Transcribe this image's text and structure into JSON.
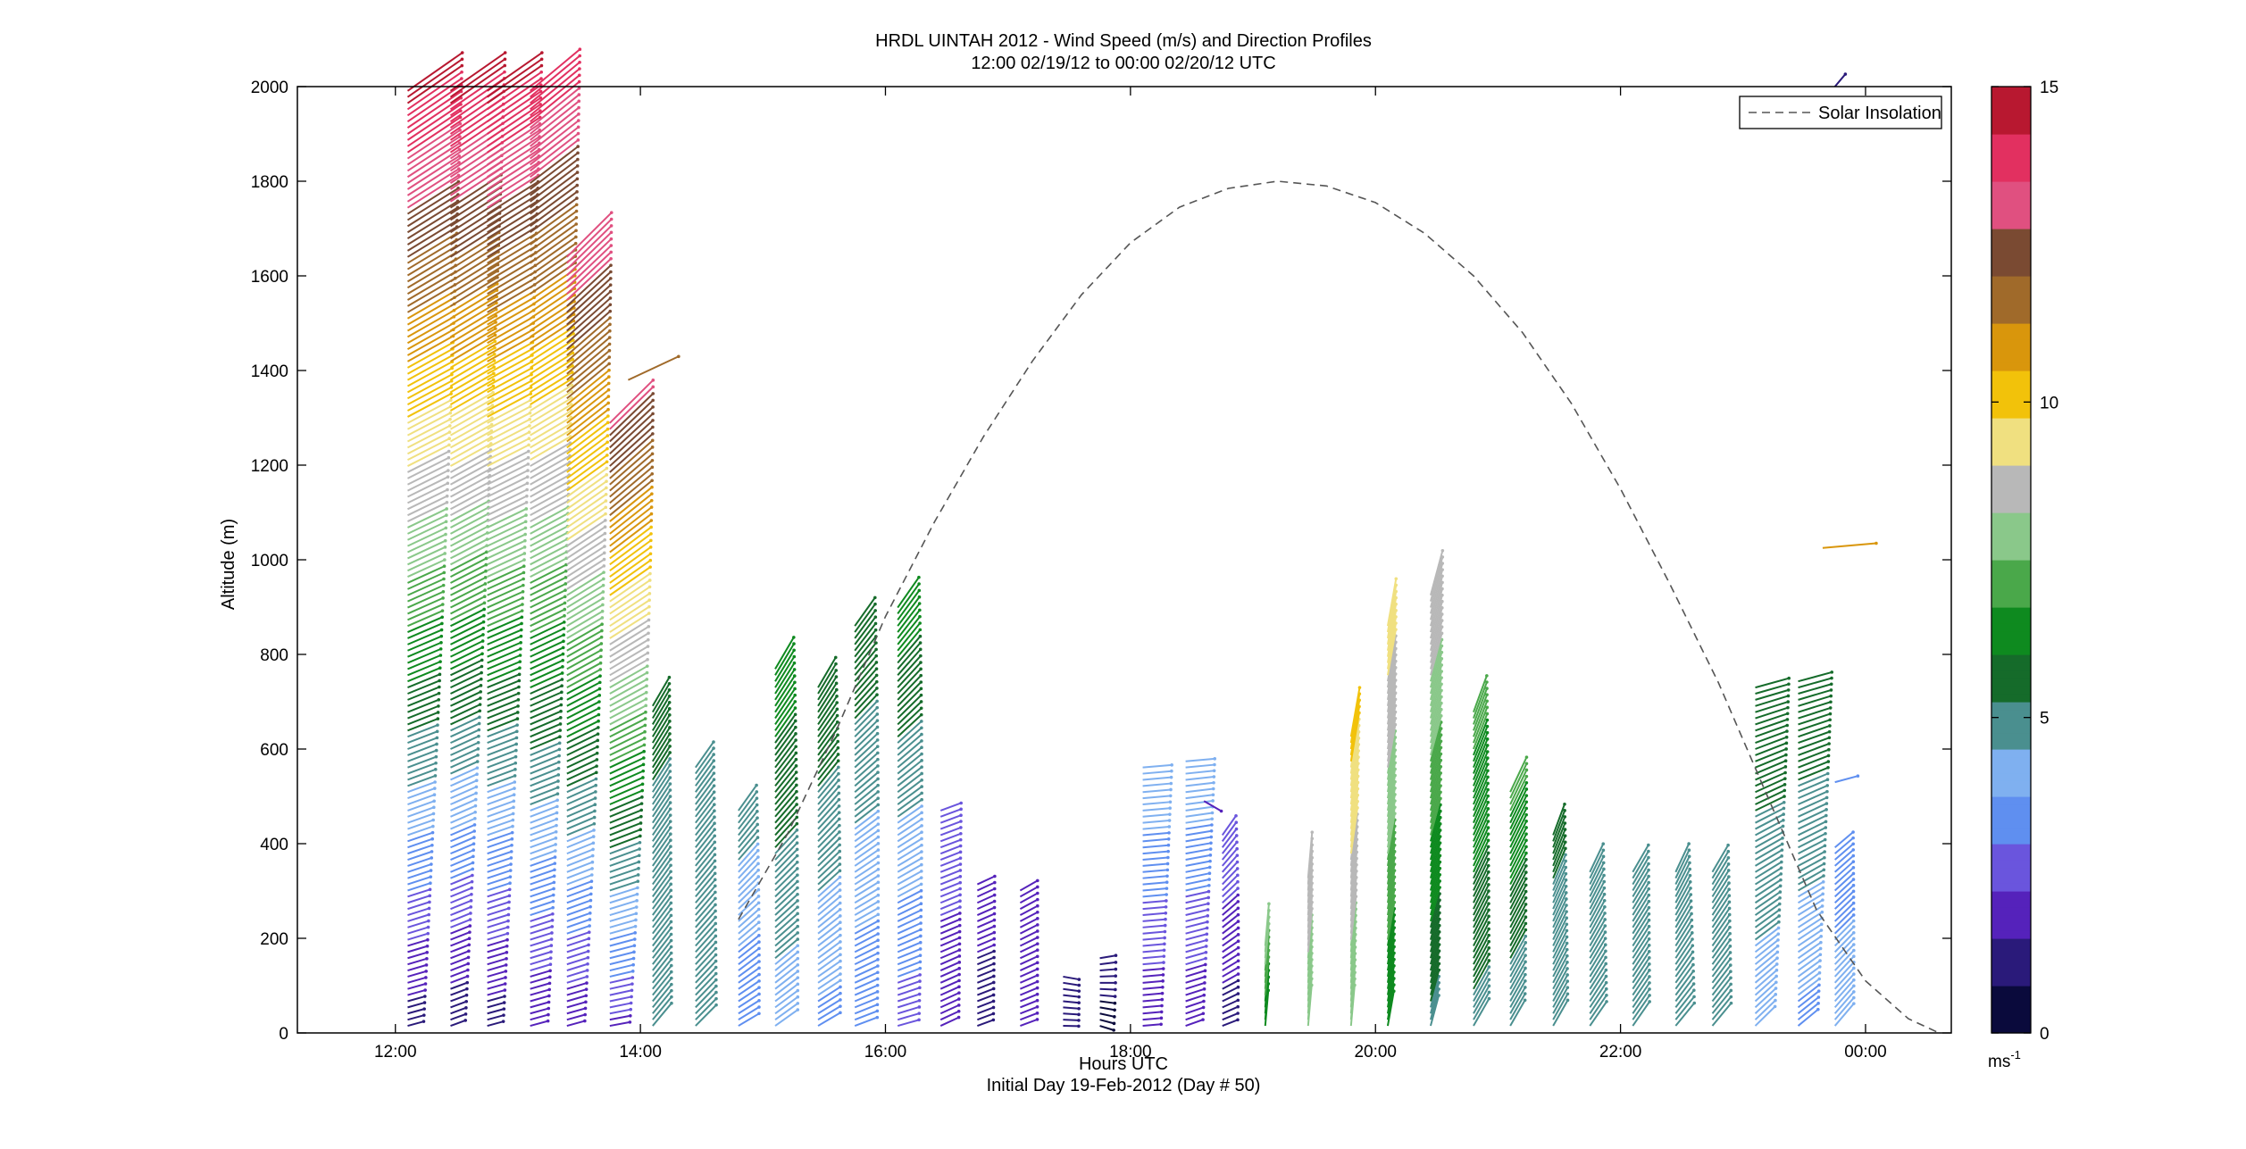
{
  "chart_data": {
    "type": "scatter",
    "title_line1": "HRDL UINTAH 2012 - Wind Speed (m/s) and Direction Profiles",
    "title_line2": "12:00 02/19/12 to 00:00 02/20/12  UTC",
    "xlabel": "Hours UTC",
    "xlabel_sub": "Initial Day 19-Feb-2012 (Day # 50)",
    "ylabel": "Altitude (m)",
    "xlim": [
      11.2,
      24.7
    ],
    "ylim": [
      0,
      2000
    ],
    "x_ticks": [
      12,
      14,
      16,
      18,
      20,
      22,
      24
    ],
    "x_tick_labels": [
      "12:00",
      "14:00",
      "16:00",
      "18:00",
      "20:00",
      "22:00",
      "00:00"
    ],
    "y_ticks": [
      0,
      200,
      400,
      600,
      800,
      1000,
      1200,
      1400,
      1600,
      1800,
      2000
    ],
    "y_tick_labels": [
      "0",
      "200",
      "400",
      "600",
      "800",
      "1000",
      "1200",
      "1400",
      "1600",
      "1800",
      "2000"
    ],
    "legend": {
      "entries": [
        "Solar Insolation"
      ],
      "placement": "top-right"
    },
    "colorbar": {
      "min": 0,
      "max": 15,
      "ticks": [
        0,
        5,
        10,
        15
      ],
      "tick_labels": [
        "0",
        "5",
        "10",
        "15"
      ],
      "unit_label": "ms",
      "unit_exp": "-1",
      "colors": [
        "#0a0a3c",
        "#2a1a7a",
        "#5522bb",
        "#6a55dd",
        "#5f8ff0",
        "#7fb0f0",
        "#4a8f8f",
        "#156b2a",
        "#0e8a1f",
        "#4aa84a",
        "#8ac88a",
        "#b8b8b8",
        "#f0e080",
        "#f2c20a",
        "#d9960c",
        "#a06a2a",
        "#7a4a32",
        "#e05080",
        "#e23060",
        "#b81830"
      ]
    },
    "solar_insolation": {
      "style": "dashed",
      "color": "#555555",
      "x": [
        14.8,
        15.2,
        15.6,
        16.0,
        16.4,
        16.8,
        17.2,
        17.6,
        18.0,
        18.4,
        18.8,
        19.2,
        19.6,
        20.0,
        20.4,
        20.8,
        21.2,
        21.6,
        22.0,
        22.4,
        22.8,
        23.2,
        23.6,
        24.0,
        24.35,
        24.6
      ],
      "y": [
        240,
        420,
        640,
        880,
        1080,
        1260,
        1420,
        1560,
        1670,
        1745,
        1785,
        1800,
        1790,
        1755,
        1690,
        1600,
        1480,
        1330,
        1150,
        950,
        740,
        500,
        260,
        110,
        30,
        0
      ]
    },
    "profiles": [
      {
        "t": 12.1,
        "ztop": 2000,
        "s_bot": 1.0,
        "s_top": 14.5,
        "dir_bot": 255,
        "dir_top": 235
      },
      {
        "t": 12.45,
        "ztop": 2000,
        "s_bot": 0.8,
        "s_top": 14.5,
        "dir_bot": 250,
        "dir_top": 235
      },
      {
        "t": 12.75,
        "ztop": 2000,
        "s_bot": 1.0,
        "s_top": 14.5,
        "dir_bot": 255,
        "dir_top": 235
      },
      {
        "t": 13.1,
        "ztop": 2000,
        "s_bot": 1.5,
        "s_top": 14.0,
        "dir_bot": 255,
        "dir_top": 230
      },
      {
        "t": 13.4,
        "ztop": 1650,
        "s_bot": 1.5,
        "s_top": 13.5,
        "dir_bot": 255,
        "dir_top": 225
      },
      {
        "t": 13.75,
        "ztop": 1300,
        "s_bot": 2.0,
        "s_top": 13.0,
        "dir_bot": 260,
        "dir_top": 225
      },
      {
        "t": 14.1,
        "ztop": 700,
        "s_bot": 4.5,
        "s_top": 5.5,
        "dir_bot": 220,
        "dir_top": 210
      },
      {
        "t": 14.45,
        "ztop": 570,
        "s_bot": 4.5,
        "s_top": 5.0,
        "dir_bot": 225,
        "dir_top": 215
      },
      {
        "t": 14.8,
        "ztop": 480,
        "s_bot": 3.0,
        "s_top": 5.0,
        "dir_bot": 240,
        "dir_top": 215
      },
      {
        "t": 15.1,
        "ztop": 780,
        "s_bot": 4.0,
        "s_top": 6.5,
        "dir_bot": 235,
        "dir_top": 210
      },
      {
        "t": 15.45,
        "ztop": 740,
        "s_bot": 3.5,
        "s_top": 6.0,
        "dir_bot": 240,
        "dir_top": 210
      },
      {
        "t": 15.75,
        "ztop": 870,
        "s_bot": 3.0,
        "s_top": 6.0,
        "dir_bot": 250,
        "dir_top": 215
      },
      {
        "t": 16.1,
        "ztop": 900,
        "s_bot": 2.5,
        "s_top": 6.5,
        "dir_bot": 255,
        "dir_top": 215
      },
      {
        "t": 16.45,
        "ztop": 480,
        "s_bot": 2.0,
        "s_top": 2.5,
        "dir_bot": 245,
        "dir_top": 250
      },
      {
        "t": 16.75,
        "ztop": 320,
        "s_bot": 1.2,
        "s_top": 1.8,
        "dir_bot": 250,
        "dir_top": 245
      },
      {
        "t": 17.1,
        "ztop": 310,
        "s_bot": 1.5,
        "s_top": 2.0,
        "dir_bot": 250,
        "dir_top": 240
      },
      {
        "t": 17.45,
        "ztop": 120,
        "s_bot": 0.8,
        "s_top": 1.0,
        "dir_bot": 270,
        "dir_top": 280
      },
      {
        "t": 17.75,
        "ztop": 160,
        "s_bot": 0.5,
        "s_top": 1.0,
        "dir_bot": 290,
        "dir_top": 260
      },
      {
        "t": 18.1,
        "ztop": 570,
        "s_bot": 1.5,
        "s_top": 4.5,
        "dir_bot": 265,
        "dir_top": 265
      },
      {
        "t": 18.45,
        "ztop": 580,
        "s_bot": 1.5,
        "s_top": 4.5,
        "dir_bot": 250,
        "dir_top": 265
      },
      {
        "t": 18.75,
        "ztop": 420,
        "s_bot": 1.0,
        "s_top": 3.0,
        "dir_bot": 250,
        "dir_top": 215
      },
      {
        "t": 19.1,
        "ztop": 190,
        "s_bot": 6.0,
        "s_top": 8.0,
        "dir_bot": 185,
        "dir_top": 185
      },
      {
        "t": 19.45,
        "ztop": 330,
        "s_bot": 7.5,
        "s_top": 9.0,
        "dir_bot": 185,
        "dir_top": 185
      },
      {
        "t": 19.8,
        "ztop": 630,
        "s_bot": 7.5,
        "s_top": 10.0,
        "dir_bot": 185,
        "dir_top": 190
      },
      {
        "t": 20.1,
        "ztop": 870,
        "s_bot": 6.0,
        "s_top": 9.5,
        "dir_bot": 190,
        "dir_top": 190
      },
      {
        "t": 20.45,
        "ztop": 930,
        "s_bot": 5.0,
        "s_top": 9.0,
        "dir_bot": 195,
        "dir_top": 195
      },
      {
        "t": 20.8,
        "ztop": 680,
        "s_bot": 5.0,
        "s_top": 7.0,
        "dir_bot": 210,
        "dir_top": 200
      },
      {
        "t": 21.1,
        "ztop": 520,
        "s_bot": 4.5,
        "s_top": 7.0,
        "dir_bot": 210,
        "dir_top": 205
      },
      {
        "t": 21.45,
        "ztop": 430,
        "s_bot": 4.5,
        "s_top": 5.5,
        "dir_bot": 210,
        "dir_top": 200
      },
      {
        "t": 21.75,
        "ztop": 350,
        "s_bot": 4.5,
        "s_top": 5.0,
        "dir_bot": 215,
        "dir_top": 205
      },
      {
        "t": 22.1,
        "ztop": 340,
        "s_bot": 4.5,
        "s_top": 5.0,
        "dir_bot": 215,
        "dir_top": 210
      },
      {
        "t": 22.45,
        "ztop": 340,
        "s_bot": 4.5,
        "s_top": 5.0,
        "dir_bot": 220,
        "dir_top": 205
      },
      {
        "t": 22.75,
        "ztop": 350,
        "s_bot": 4.5,
        "s_top": 5.0,
        "dir_bot": 220,
        "dir_top": 210
      },
      {
        "t": 23.1,
        "ztop": 740,
        "s_bot": 4.0,
        "s_top": 6.0,
        "dir_bot": 225,
        "dir_top": 255
      },
      {
        "t": 23.45,
        "ztop": 750,
        "s_bot": 3.5,
        "s_top": 6.0,
        "dir_bot": 230,
        "dir_top": 255
      },
      {
        "t": 23.75,
        "ztop": 400,
        "s_bot": 4.5,
        "s_top": 3.0,
        "dir_bot": 220,
        "dir_top": 230
      }
    ],
    "isolated_barbs": [
      {
        "t": 13.9,
        "z": 1380,
        "s": 11.5,
        "dir": 245
      },
      {
        "t": 23.65,
        "z": 1025,
        "s": 11.0,
        "dir": 265
      },
      {
        "t": 23.75,
        "z": 2000,
        "s": 1.0,
        "dir": 220
      },
      {
        "t": 23.75,
        "z": 530,
        "s": 3.0,
        "dir": 255
      },
      {
        "t": 18.6,
        "z": 490,
        "s": 2.0,
        "dir": 300
      }
    ]
  }
}
